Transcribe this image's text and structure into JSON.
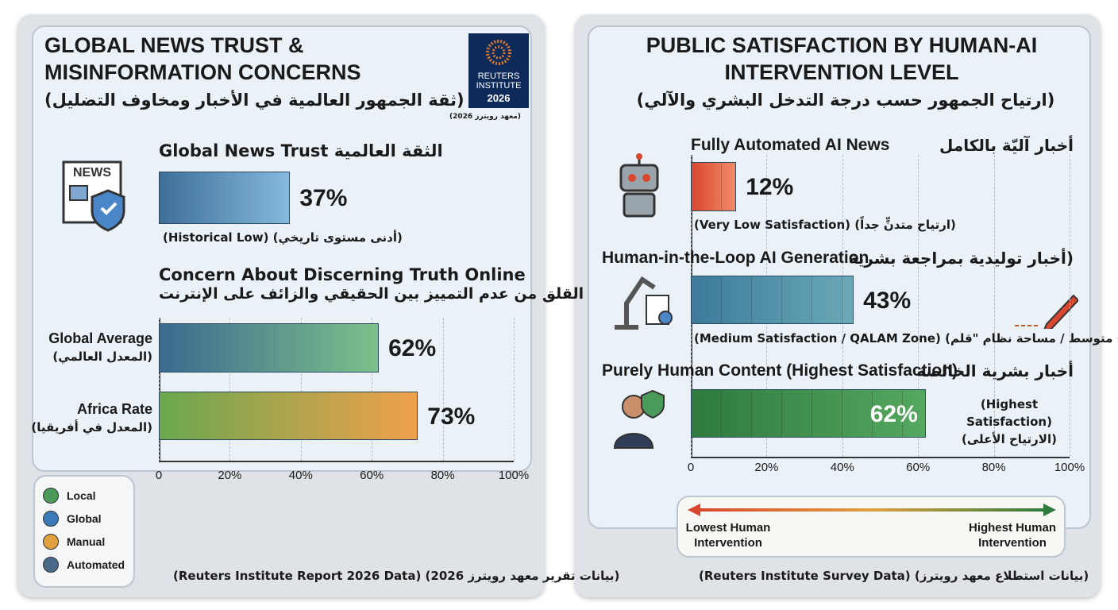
{
  "chart_data": [
    {
      "type": "bar",
      "orientation": "horizontal",
      "title": "GLOBAL NEWS TRUST & MISINFORMATION CONCERNS",
      "subtitle": "(ثقة الجمهور العالمية في الأخبار ومخاوف التضليل)",
      "badge": {
        "name": "REUTERS INSTITUTE",
        "year": "2026",
        "caption": "(معهد رويترز 2026)"
      },
      "icon_text": "NEWS",
      "headings": [
        "Global News Trust الثقة العالمية",
        "Concern About Discerning Truth Online",
        "القلق من عدم التمييز بين الحقيقي والزائف على الإنترنت"
      ],
      "categories": [
        null,
        "Global Average",
        "Africa Rate"
      ],
      "category_notes": [
        "(Historical Low) (أدنى مستوى تاريخي)",
        "(المعدل العالمي)",
        "(المعدل في أفريقيا)"
      ],
      "values": [
        37,
        62,
        73
      ],
      "value_labels": [
        "37%",
        "62%",
        "73%"
      ],
      "colors": [
        [
          "#3d6f99",
          "#86b9de"
        ],
        [
          "#3b6a8f",
          "#7cc08a"
        ],
        [
          "#6aa84f",
          "#f0a04b"
        ]
      ],
      "xlim": [
        0,
        100
      ],
      "xticks": [
        0,
        {
          "value": 20,
          "label": "20%"
        },
        {
          "value": 40,
          "label": "40%"
        },
        {
          "value": 60,
          "label": "60%"
        },
        {
          "value": 80,
          "label": "80%"
        },
        {
          "value": 100,
          "label": "100%"
        }
      ],
      "grid": true,
      "legend": [
        "Local",
        "Global",
        "Manual",
        "Automated"
      ],
      "source": "(Reuters Institute Report 2026 Data) (بيانات تقرير معهد رويترز 2026)"
    },
    {
      "type": "bar",
      "orientation": "horizontal",
      "title": "PUBLIC SATISFACTION BY HUMAN-AI INTERVENTION LEVEL",
      "subtitle": "(ارتياح الجمهور حسب درجة التدخل البشري والآلي)",
      "categories": [
        "Fully Automated AI News",
        "Human-in-the-Loop AI Generation",
        "Purely Human Content (Highest Satisfaction)"
      ],
      "categories_ar": [
        "أخبار آليّة بالكامل",
        "(أخبار توليدية بمراجعة بشرية",
        "أخبار بشرية الخالصة"
      ],
      "category_notes": [
        "(Very Low Satisfaction) (ارتياح متدنٍّ جداً)",
        "(Medium Satisfaction / QALAM Zone) (ارتياح متوسط / مساحة نظام \"قلم\")",
        "(Highest Satisfaction) (الارتياح الأعلى)"
      ],
      "values": [
        12,
        43,
        62
      ],
      "value_labels": [
        "12%",
        "43%",
        "62%"
      ],
      "colors": [
        [
          "#d9472f",
          "#f08a6a"
        ],
        [
          "#3d7a9a",
          "#6aa9b8"
        ],
        [
          "#2f7a3e",
          "#55a85f"
        ]
      ],
      "xlim": [
        0,
        100
      ],
      "xticks": [
        0,
        {
          "value": 20,
          "label": "20%"
        },
        {
          "value": 40,
          "label": "40%"
        },
        {
          "value": 60,
          "label": "60%"
        },
        {
          "value": 80,
          "label": "80%"
        },
        {
          "value": 100,
          "label": "100%"
        }
      ],
      "grid": true,
      "scale": {
        "low": "Lowest Human Intervention",
        "high": "Highest Human Intervention"
      },
      "source": "(Reuters Institute Survey Data) (بيانات استطلاع معهد رويترز)"
    }
  ]
}
